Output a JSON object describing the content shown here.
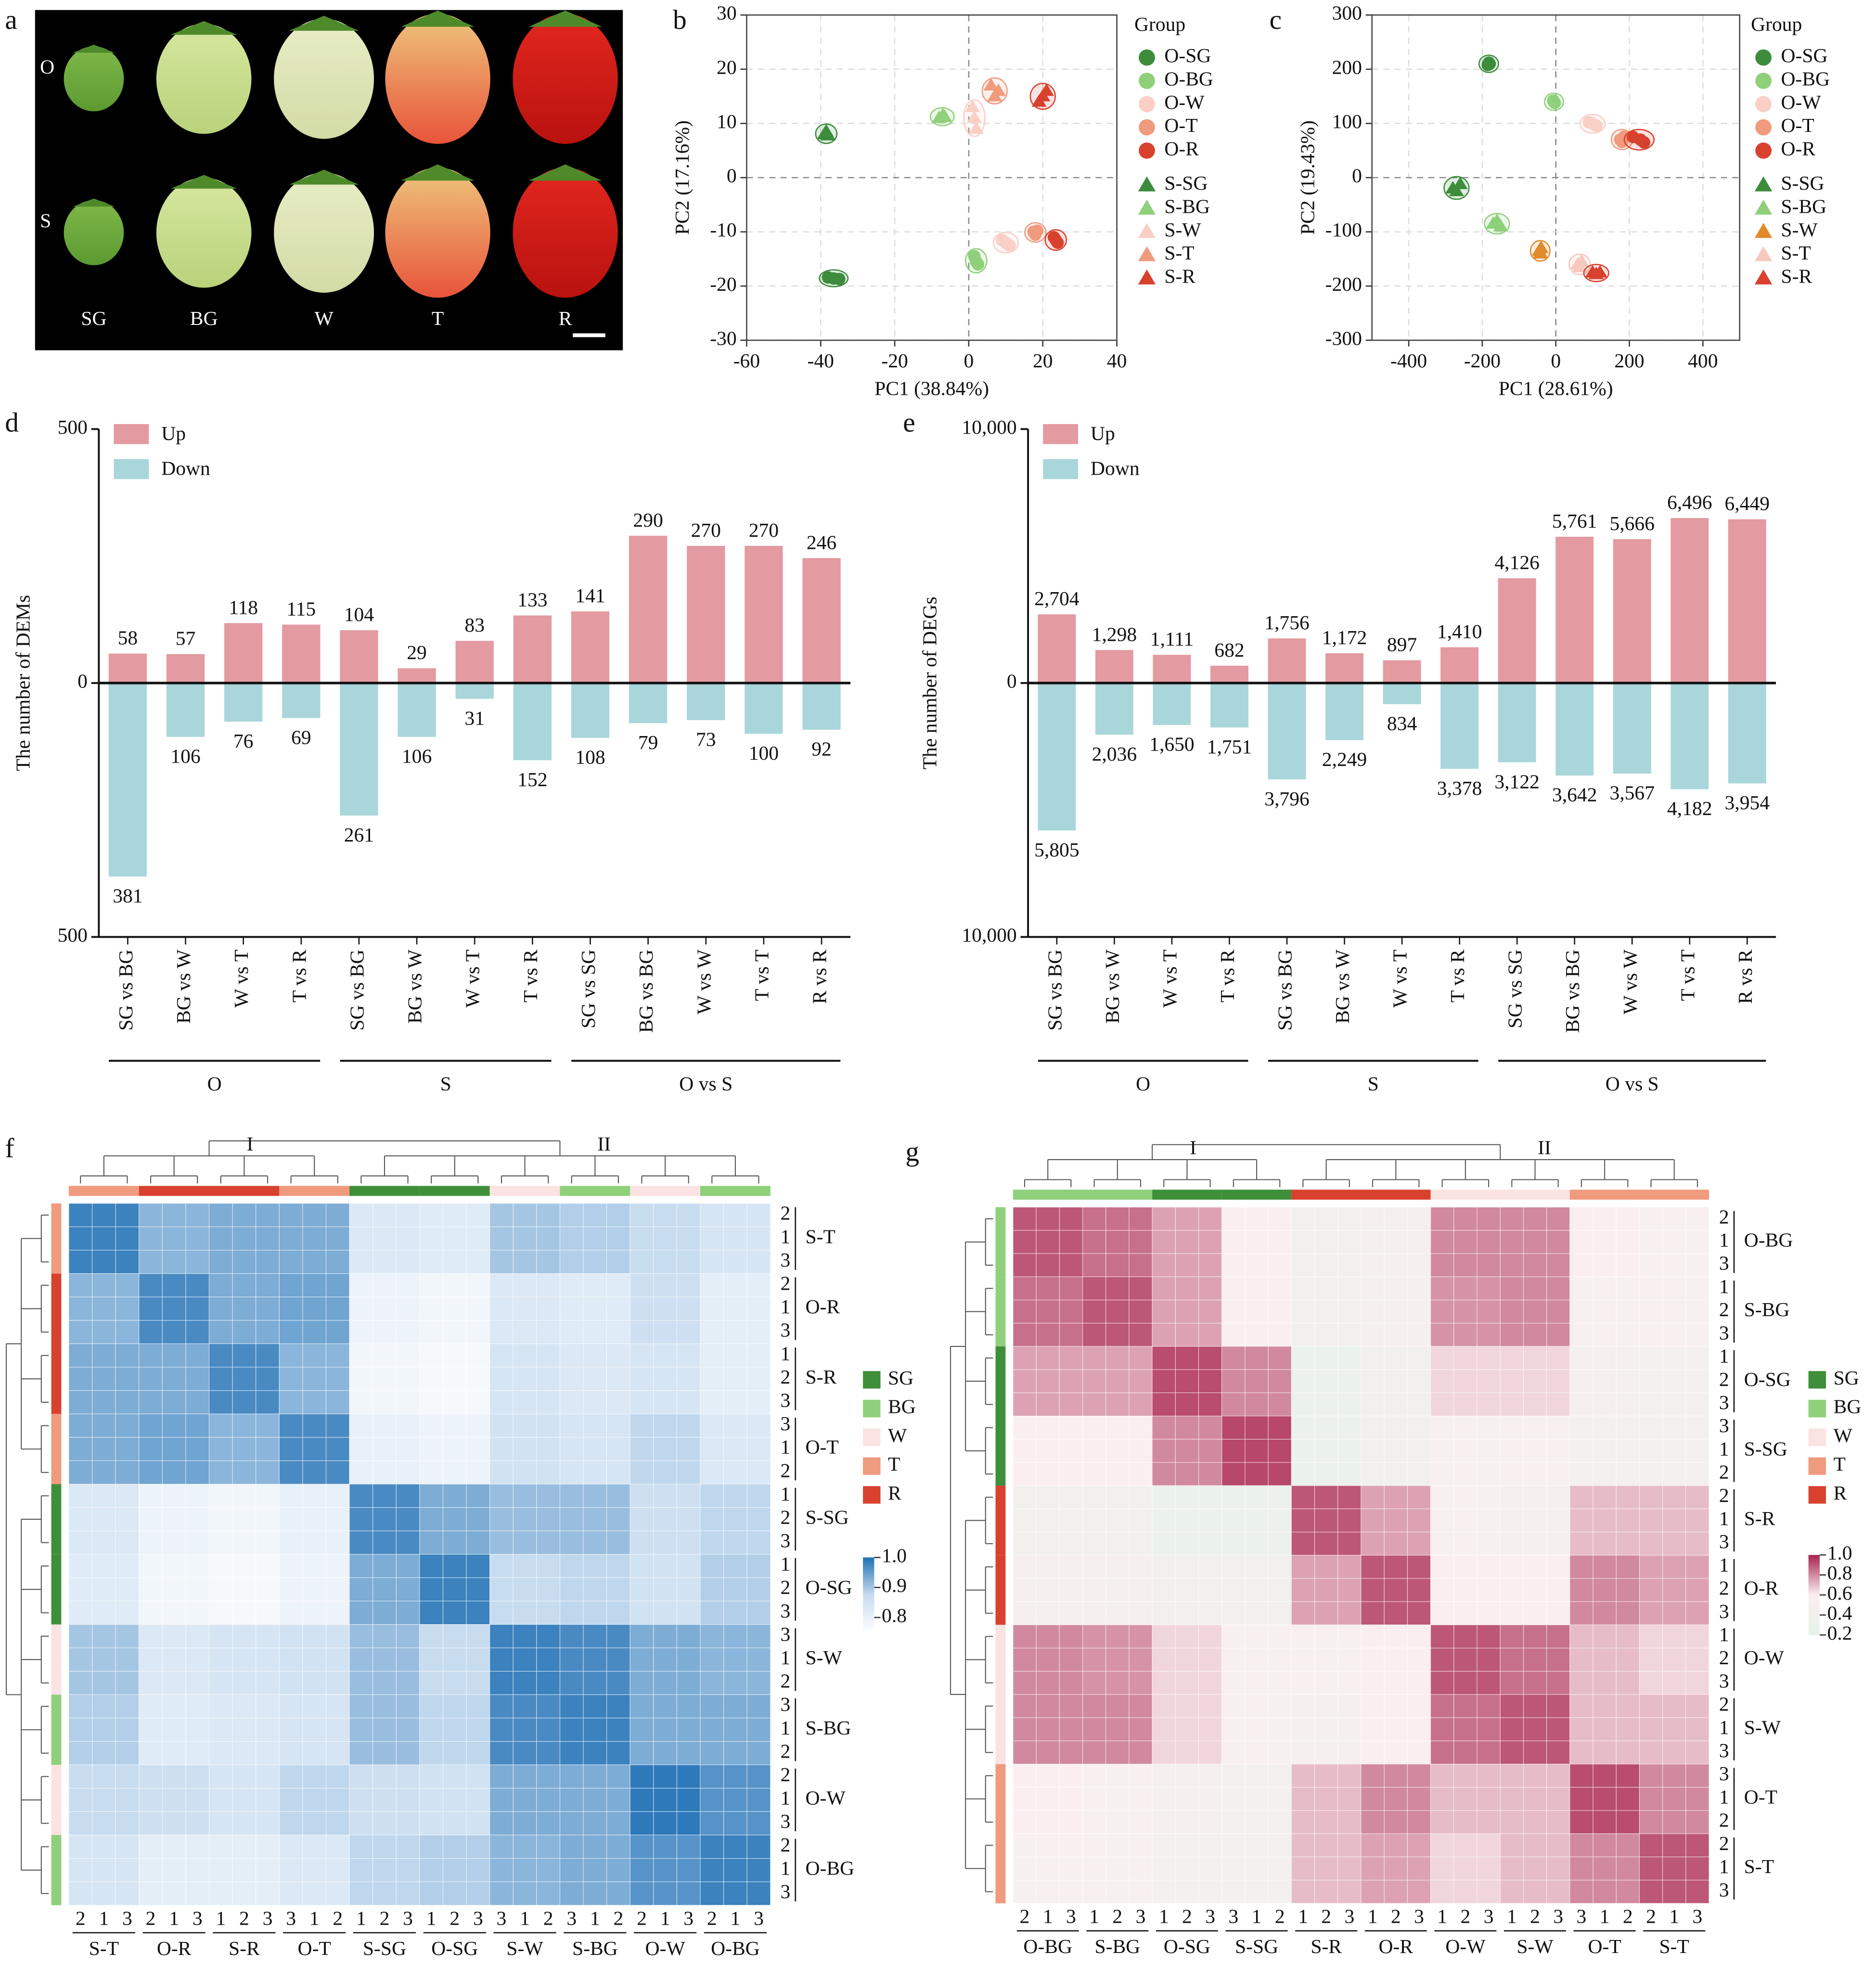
{
  "photo": {
    "label": "a",
    "row_labels": [
      "O",
      "S"
    ],
    "col_labels": [
      "SG",
      "BG",
      "W",
      "T",
      "R"
    ]
  },
  "chart_data": [
    {
      "type": "scatter",
      "label": "b",
      "xlabel": "PC1 (38.84%)",
      "ylabel": "PC2 (17.16%)",
      "legend_title": "Group",
      "xlim": [
        -60,
        40
      ],
      "xticks": [
        -60,
        -40,
        -20,
        0,
        20,
        40
      ],
      "ylim": [
        -30,
        30
      ],
      "yticks": [
        -30,
        -20,
        -10,
        0,
        10,
        20,
        30
      ],
      "grid": true,
      "series": [
        {
          "name": "O-SG",
          "color": "#3c8c3c",
          "marker": "circle",
          "x": [
            -38,
            -36.5,
            -35
          ],
          "y": [
            -18.4,
            -18.6,
            -18.7
          ]
        },
        {
          "name": "O-BG",
          "color": "#8fd07a",
          "marker": "circle",
          "x": [
            1.5,
            2,
            2.5
          ],
          "y": [
            -14.5,
            -15.5,
            -16
          ]
        },
        {
          "name": "O-W",
          "color": "#f9cfc6",
          "marker": "circle",
          "x": [
            9,
            10,
            11
          ],
          "y": [
            -11.5,
            -12,
            -12.5
          ]
        },
        {
          "name": "O-T",
          "color": "#f09a7e",
          "marker": "circle",
          "x": [
            17.5,
            18,
            18.5
          ],
          "y": [
            -10,
            -10.5,
            -9.8
          ]
        },
        {
          "name": "O-R",
          "color": "#d9412f",
          "marker": "circle",
          "x": [
            23,
            23.5,
            24
          ],
          "y": [
            -11,
            -11.5,
            -12
          ]
        },
        {
          "name": "S-SG",
          "color": "#3c8c3c",
          "marker": "triangle",
          "x": [
            -39,
            -38.5,
            -38
          ],
          "y": [
            8,
            8.5,
            7.8
          ]
        },
        {
          "name": "S-BG",
          "color": "#8fd07a",
          "marker": "triangle",
          "x": [
            -8,
            -7,
            -6.5
          ],
          "y": [
            11,
            11.5,
            11.2
          ]
        },
        {
          "name": "S-W",
          "color": "#f9cfc6",
          "marker": "triangle",
          "x": [
            1,
            1.5,
            2
          ],
          "y": [
            13,
            11,
            9
          ]
        },
        {
          "name": "S-T",
          "color": "#f09a7e",
          "marker": "triangle",
          "x": [
            6,
            7,
            8
          ],
          "y": [
            17,
            15,
            16
          ]
        },
        {
          "name": "S-R",
          "color": "#d9412f",
          "marker": "triangle",
          "x": [
            19,
            20,
            21
          ],
          "y": [
            14,
            15,
            16
          ]
        }
      ]
    },
    {
      "type": "scatter",
      "label": "c",
      "xlabel": "PC1 (28.61%)",
      "ylabel": "PC2 (19.43%)",
      "legend_title": "Group",
      "xlim": [
        -500,
        500
      ],
      "xticks": [
        -400,
        -200,
        0,
        200,
        400
      ],
      "ylim": [
        -300,
        300
      ],
      "yticks": [
        -300,
        -200,
        -100,
        0,
        100,
        200,
        300
      ],
      "grid": true,
      "series": [
        {
          "name": "O-SG",
          "color": "#3c8c3c",
          "marker": "circle",
          "x": [
            -185,
            -180,
            -182
          ],
          "y": [
            208,
            210,
            212
          ]
        },
        {
          "name": "O-BG",
          "color": "#8fd07a",
          "marker": "circle",
          "x": [
            -5,
            -3,
            -7
          ],
          "y": [
            140,
            138,
            142
          ]
        },
        {
          "name": "O-W",
          "color": "#f9cfc6",
          "marker": "circle",
          "x": [
            90,
            100,
            110
          ],
          "y": [
            102,
            100,
            96
          ]
        },
        {
          "name": "O-T",
          "color": "#f09a7e",
          "marker": "circle",
          "x": [
            175,
            180,
            185
          ],
          "y": [
            70,
            66,
            75
          ]
        },
        {
          "name": "O-R",
          "color": "#d9412f",
          "marker": "circle",
          "x": [
            210,
            230,
            240
          ],
          "y": [
            75,
            70,
            65
          ]
        },
        {
          "name": "S-SG",
          "color": "#3c8c3c",
          "marker": "triangle",
          "x": [
            -280,
            -270,
            -260
          ],
          "y": [
            -20,
            -25,
            -12
          ]
        },
        {
          "name": "S-BG",
          "color": "#8fd07a",
          "marker": "triangle",
          "x": [
            -170,
            -160,
            -150
          ],
          "y": [
            -85,
            -80,
            -90
          ]
        },
        {
          "name": "S-W",
          "color": "#e08a2c",
          "marker": "triangle",
          "x": [
            -45,
            -42,
            -40
          ],
          "y": [
            -135,
            -140,
            -130
          ]
        },
        {
          "name": "S-T",
          "color": "#f7c8bd",
          "marker": "triangle",
          "x": [
            60,
            65,
            70
          ],
          "y": [
            -160,
            -165,
            -155
          ]
        },
        {
          "name": "S-R",
          "color": "#d9412f",
          "marker": "triangle",
          "x": [
            100,
            110,
            120
          ],
          "y": [
            -175,
            -178,
            -175
          ]
        }
      ]
    },
    {
      "type": "bar",
      "label": "d",
      "ylabel": "The number of DEMs",
      "categories": [
        "SG vs BG",
        "BG vs W",
        "W vs T",
        "T vs R",
        "SG vs BG",
        "BG vs W",
        "W vs T",
        "T vs R",
        "SG vs SG",
        "BG vs BG",
        "W vs W",
        "T vs T",
        "R vs R"
      ],
      "groups": [
        {
          "label": "O",
          "start": 0,
          "end": 3
        },
        {
          "label": "S",
          "start": 4,
          "end": 7
        },
        {
          "label": "O vs S",
          "start": 8,
          "end": 12
        }
      ],
      "ylim": [
        -500,
        500
      ],
      "yticks": [
        {
          "value": -500,
          "label": "500"
        },
        0,
        500
      ],
      "series": [
        {
          "name": "Up",
          "color": "#e39aa0",
          "direction": "up",
          "values": [
            58,
            57,
            118,
            115,
            104,
            29,
            83,
            133,
            141,
            290,
            270,
            270,
            246
          ]
        },
        {
          "name": "Down",
          "color": "#a9d6da",
          "direction": "down",
          "values": [
            381,
            106,
            76,
            69,
            261,
            106,
            31,
            152,
            108,
            79,
            73,
            100,
            92
          ]
        }
      ]
    },
    {
      "type": "bar",
      "label": "e",
      "ylabel": "The number of DEGs",
      "categories": [
        "SG vs BG",
        "BG vs W",
        "W vs T",
        "T vs R",
        "SG vs BG",
        "BG vs W",
        "W vs T",
        "T vs R",
        "SG vs SG",
        "BG vs BG",
        "W vs W",
        "T vs T",
        "R vs R"
      ],
      "groups": [
        {
          "label": "O",
          "start": 0,
          "end": 3
        },
        {
          "label": "S",
          "start": 4,
          "end": 7
        },
        {
          "label": "O vs S",
          "start": 8,
          "end": 12
        }
      ],
      "ylim": [
        -10000,
        10000
      ],
      "yticks": [
        {
          "value": -10000,
          "label": "10,000"
        },
        0,
        {
          "value": 10000,
          "label": "10,000"
        }
      ],
      "series": [
        {
          "name": "Up",
          "color": "#e39aa0",
          "direction": "up",
          "values": [
            2704,
            1298,
            1111,
            682,
            1756,
            1172,
            897,
            1410,
            4126,
            5761,
            5666,
            6496,
            6449
          ],
          "value_labels": [
            "2,704",
            "1,298",
            "1,111",
            "682",
            "1,756",
            "1,172",
            "897",
            "1,410",
            "4,126",
            "5,761",
            "5,666",
            "6,496",
            "6,449"
          ]
        },
        {
          "name": "Down",
          "color": "#a9d6da",
          "direction": "down",
          "values": [
            5805,
            2036,
            1650,
            1751,
            3796,
            2249,
            834,
            3378,
            3122,
            3642,
            3567,
            4182,
            3954
          ],
          "value_labels": [
            "5,805",
            "2,036",
            "1,650",
            "1,751",
            "3,796",
            "2,249",
            "834",
            "3,378",
            "3,122",
            "3,642",
            "3,567",
            "4,182",
            "3,954"
          ]
        }
      ]
    },
    {
      "type": "heatmap",
      "label": "f",
      "row_groups": [
        "S-T",
        "O-R",
        "S-R",
        "O-T",
        "S-SG",
        "O-SG",
        "S-W",
        "S-BG",
        "O-W",
        "O-BG"
      ],
      "col_groups": [
        "S-T",
        "O-R",
        "S-R",
        "O-T",
        "S-SG",
        "O-SG",
        "S-W",
        "S-BG",
        "O-W",
        "O-BG"
      ],
      "row_samples": [
        [
          2,
          1,
          3
        ],
        [
          2,
          1,
          3
        ],
        [
          1,
          2,
          3
        ],
        [
          3,
          1,
          2
        ],
        [
          1,
          2,
          3
        ],
        [
          1,
          2,
          3
        ],
        [
          3,
          1,
          2
        ],
        [
          3,
          1,
          2
        ],
        [
          2,
          1,
          3
        ],
        [
          2,
          1,
          3
        ]
      ],
      "col_samples": [
        [
          2,
          1,
          3
        ],
        [
          2,
          1,
          3
        ],
        [
          1,
          2,
          3
        ],
        [
          3,
          1,
          2
        ],
        [
          1,
          2,
          3
        ],
        [
          1,
          2,
          3
        ],
        [
          3,
          1,
          2
        ],
        [
          3,
          1,
          2
        ],
        [
          2,
          1,
          3
        ],
        [
          2,
          1,
          3
        ]
      ],
      "clusters": [
        {
          "label": "I",
          "start": 0,
          "end": 3
        },
        {
          "label": "II",
          "start": 4,
          "end": 9
        }
      ],
      "annotation": {
        "names": [
          "SG",
          "BG",
          "W",
          "T",
          "R"
        ],
        "colors": [
          "#3f8f3a",
          "#8fd07a",
          "#fbe3e1",
          "#f09a7e",
          "#d9412f"
        ]
      },
      "clim": [
        0.75,
        1
      ],
      "cticks": [
        {
          "value": 1,
          "label": "1.0"
        },
        0.9,
        0.8
      ],
      "colors": [
        "#ffffff",
        "#c6dbef",
        "#2171b5"
      ],
      "values": [
        [
          0.98,
          0.92,
          0.93,
          0.93,
          0.83,
          0.82,
          0.9,
          0.89,
          0.87,
          0.84
        ],
        [
          0.92,
          0.97,
          0.93,
          0.94,
          0.79,
          0.78,
          0.83,
          0.82,
          0.86,
          0.81
        ],
        [
          0.93,
          0.93,
          0.97,
          0.92,
          0.78,
          0.77,
          0.84,
          0.83,
          0.84,
          0.81
        ],
        [
          0.93,
          0.94,
          0.92,
          0.97,
          0.8,
          0.79,
          0.85,
          0.84,
          0.88,
          0.83
        ],
        [
          0.83,
          0.79,
          0.78,
          0.8,
          0.97,
          0.93,
          0.91,
          0.91,
          0.86,
          0.88
        ],
        [
          0.82,
          0.78,
          0.77,
          0.79,
          0.93,
          0.98,
          0.87,
          0.88,
          0.85,
          0.89
        ],
        [
          0.9,
          0.83,
          0.84,
          0.85,
          0.91,
          0.87,
          0.98,
          0.97,
          0.93,
          0.92
        ],
        [
          0.89,
          0.82,
          0.83,
          0.84,
          0.91,
          0.88,
          0.97,
          0.98,
          0.93,
          0.93
        ],
        [
          0.87,
          0.86,
          0.84,
          0.88,
          0.86,
          0.85,
          0.93,
          0.93,
          0.99,
          0.96
        ],
        [
          0.84,
          0.81,
          0.81,
          0.83,
          0.88,
          0.89,
          0.92,
          0.93,
          0.96,
          0.98
        ]
      ]
    },
    {
      "type": "heatmap",
      "label": "g",
      "row_groups": [
        "O-BG",
        "S-BG",
        "O-SG",
        "S-SG",
        "S-R",
        "O-R",
        "O-W",
        "S-W",
        "O-T",
        "S-T"
      ],
      "col_groups": [
        "O-BG",
        "S-BG",
        "O-SG",
        "S-SG",
        "S-R",
        "O-R",
        "O-W",
        "S-W",
        "O-T",
        "S-T"
      ],
      "row_samples": [
        [
          2,
          1,
          3
        ],
        [
          1,
          2,
          3
        ],
        [
          1,
          2,
          3
        ],
        [
          3,
          1,
          2
        ],
        [
          2,
          1,
          3
        ],
        [
          1,
          2,
          3
        ],
        [
          1,
          2,
          3
        ],
        [
          2,
          1,
          3
        ],
        [
          3,
          1,
          2
        ],
        [
          2,
          1,
          3
        ]
      ],
      "col_samples": [
        [
          2,
          1,
          3
        ],
        [
          1,
          2,
          3
        ],
        [
          1,
          2,
          3
        ],
        [
          3,
          1,
          2
        ],
        [
          1,
          2,
          3
        ],
        [
          1,
          2,
          3
        ],
        [
          1,
          2,
          3
        ],
        [
          1,
          2,
          3
        ],
        [
          3,
          1,
          2
        ],
        [
          2,
          1,
          3
        ]
      ],
      "clusters": [
        {
          "label": "I",
          "start": 0,
          "end": 3
        },
        {
          "label": "II",
          "start": 4,
          "end": 9
        }
      ],
      "annotation": {
        "names": [
          "SG",
          "BG",
          "W",
          "T",
          "R"
        ],
        "colors": [
          "#3f8f3a",
          "#8fd07a",
          "#fbe3e1",
          "#f09a7e",
          "#d9412f"
        ]
      },
      "clim": [
        0.2,
        1
      ],
      "cticks": [
        {
          "value": 1,
          "label": "1.0"
        },
        0.8,
        0.6,
        0.4,
        0.2
      ],
      "colors": [
        "#e6f2e9",
        "#fbeef1",
        "#a8244e"
      ],
      "values": [
        [
          0.9,
          0.85,
          0.75,
          0.6,
          0.4,
          0.5,
          0.8,
          0.8,
          0.6,
          0.55
        ],
        [
          0.85,
          0.9,
          0.75,
          0.6,
          0.4,
          0.5,
          0.78,
          0.8,
          0.55,
          0.55
        ],
        [
          0.75,
          0.75,
          0.92,
          0.8,
          0.3,
          0.4,
          0.65,
          0.65,
          0.5,
          0.45
        ],
        [
          0.6,
          0.6,
          0.8,
          0.93,
          0.3,
          0.4,
          0.55,
          0.55,
          0.45,
          0.45
        ],
        [
          0.4,
          0.4,
          0.3,
          0.3,
          0.9,
          0.75,
          0.55,
          0.5,
          0.7,
          0.7
        ],
        [
          0.5,
          0.5,
          0.4,
          0.4,
          0.75,
          0.9,
          0.6,
          0.6,
          0.8,
          0.75
        ],
        [
          0.8,
          0.78,
          0.65,
          0.55,
          0.55,
          0.6,
          0.9,
          0.85,
          0.7,
          0.65
        ],
        [
          0.8,
          0.8,
          0.65,
          0.55,
          0.5,
          0.6,
          0.85,
          0.9,
          0.7,
          0.7
        ],
        [
          0.6,
          0.55,
          0.5,
          0.45,
          0.7,
          0.8,
          0.7,
          0.7,
          0.92,
          0.8
        ],
        [
          0.55,
          0.55,
          0.45,
          0.45,
          0.7,
          0.75,
          0.65,
          0.7,
          0.8,
          0.9
        ]
      ]
    }
  ]
}
